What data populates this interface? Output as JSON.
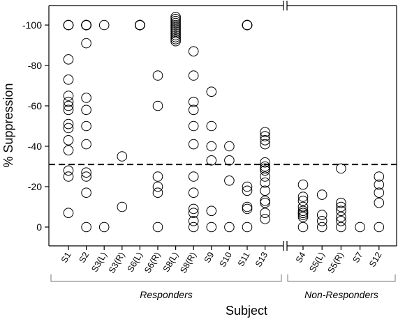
{
  "chart_data": {
    "type": "scatter",
    "title": "",
    "xlabel": "Subject",
    "ylabel": "% Suppression",
    "ylim": [
      -7,
      110
    ],
    "yticks": [
      {
        "value": 0,
        "label": "0"
      },
      {
        "value": 20,
        "label": "-20"
      },
      {
        "value": 40,
        "label": "-40"
      },
      {
        "value": 60,
        "label": "-60"
      },
      {
        "value": 80,
        "label": "-80"
      },
      {
        "value": 100,
        "label": "-100"
      }
    ],
    "threshold": 31,
    "axis_break": "between S13 and S4",
    "groups": [
      {
        "name": "Responders",
        "categories": [
          "S1",
          "S2",
          "S3(L)",
          "S3(R)",
          "S6(L)",
          "S6(R)",
          "S8(L)",
          "S8(R)",
          "S9",
          "S10",
          "S11",
          "S13"
        ]
      },
      {
        "name": "Non-Responders",
        "categories": [
          "S4",
          "S5(L)",
          "S5(R)",
          "S7",
          "S12"
        ]
      }
    ],
    "points": {
      "S1": [
        100,
        100,
        100,
        83,
        73,
        65,
        62,
        60,
        58,
        51,
        49,
        43,
        38,
        28,
        25,
        7
      ],
      "S2": [
        100,
        100,
        100,
        100,
        100,
        100,
        100,
        100,
        91,
        64,
        58,
        50,
        41,
        27,
        25,
        17,
        0
      ],
      "S3(L)": [
        100,
        0
      ],
      "S3(R)": [
        35,
        10
      ],
      "S6(L)": [
        100,
        100,
        100,
        100,
        100,
        100,
        100,
        100,
        100
      ],
      "S6(R)": [
        75,
        60,
        25,
        20,
        17,
        0
      ],
      "S8(L)": [
        104,
        103,
        102,
        101,
        100,
        99,
        98,
        97,
        96,
        95,
        94,
        93,
        92
      ],
      "S8(R)": [
        87,
        75,
        62,
        58,
        50,
        41,
        25,
        17,
        9,
        7,
        3,
        0
      ],
      "S9": [
        67,
        50,
        40,
        33,
        8,
        0
      ],
      "S10": [
        40,
        33,
        23,
        0
      ],
      "S11": [
        100,
        100,
        100,
        100,
        100,
        20,
        18,
        10,
        9,
        0
      ],
      "S13": [
        47,
        45,
        43,
        41,
        32,
        30,
        29,
        28,
        25,
        22,
        18,
        13,
        12,
        7,
        4
      ],
      "S4": [
        21,
        15,
        13,
        10,
        8,
        7,
        7,
        6,
        5,
        0
      ],
      "S5(L)": [
        16,
        6,
        3,
        0
      ],
      "S5(R)": [
        29,
        12,
        10,
        8,
        5,
        3,
        0
      ],
      "S7": [
        0
      ],
      "S12": [
        25,
        21,
        17,
        12,
        0
      ]
    }
  }
}
